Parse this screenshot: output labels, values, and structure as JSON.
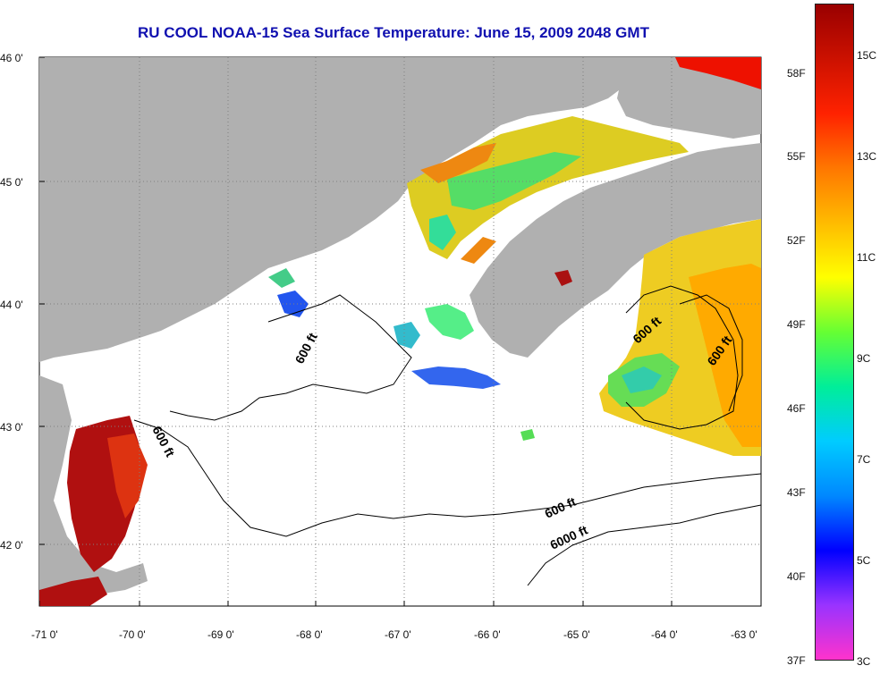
{
  "title": "RU COOL  NOAA-15  Sea Surface Temperature:  June 15, 2009 2048 GMT",
  "map": {
    "x_ticks": [
      "-71 0'",
      "-70 0'",
      "-69 0'",
      "-68 0'",
      "-67 0'",
      "-66 0'",
      "-65 0'",
      "-64 0'",
      "-63 0'"
    ],
    "y_ticks": [
      "46 0'",
      "45 0'",
      "44 0'",
      "43 0'",
      "42 0'"
    ],
    "contour_labels": [
      "600 ft",
      "600 ft",
      "600 ft",
      "600 ft",
      "600 ft",
      "6000 ft"
    ],
    "colors": {
      "land": "#b0b0b0",
      "no_data": "#ffffff",
      "grid": "#808080"
    }
  },
  "colorbar": {
    "fahrenheit": [
      "58F",
      "55F",
      "52F",
      "49F",
      "46F",
      "43F",
      "40F",
      "37F"
    ],
    "celsius": [
      "15C",
      "13C",
      "11C",
      "9C",
      "7C",
      "5C",
      "3C"
    ],
    "colors": [
      "#ff33cc",
      "#9933ff",
      "#0000ff",
      "#0088ff",
      "#00ccff",
      "#00ee99",
      "#66ff33",
      "#ffff00",
      "#ffbb00",
      "#ff7700",
      "#ff2200",
      "#cc1100",
      "#990000"
    ]
  }
}
